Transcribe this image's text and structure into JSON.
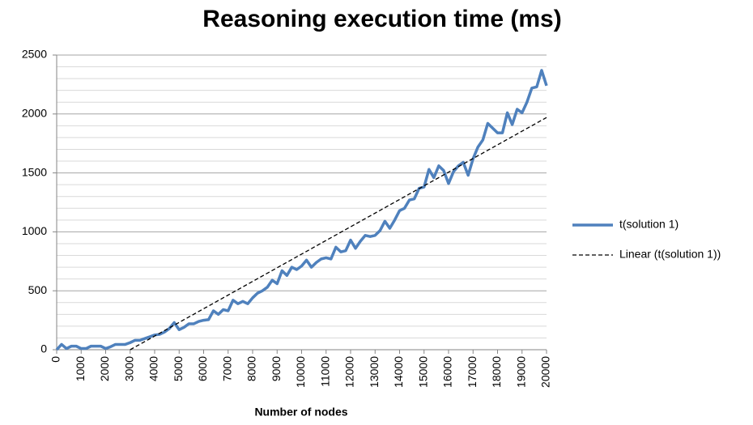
{
  "chart_data": {
    "type": "line",
    "title": "Reasoning execution time (ms)",
    "x_label": "Number of nodes",
    "xlim": [
      0,
      20000
    ],
    "xticks": [
      0,
      1000,
      2000,
      3000,
      4000,
      5000,
      6000,
      7000,
      8000,
      9000,
      10000,
      11000,
      12000,
      13000,
      14000,
      15000,
      16000,
      17000,
      18000,
      19000,
      20000
    ],
    "ylim": [
      0,
      2500
    ],
    "yticks": [
      0,
      500,
      1000,
      1500,
      2000,
      2500
    ],
    "y_minor_ticks": [
      100,
      200,
      300,
      400,
      600,
      700,
      800,
      900,
      1100,
      1200,
      1300,
      1400,
      1600,
      1700,
      1800,
      1900,
      2100,
      2200,
      2300,
      2400
    ],
    "grid": true,
    "legend": "right",
    "series": [
      {
        "name": "t(solution 1)",
        "color": "#4f81bd",
        "dash": false,
        "x": [
          0,
          200,
          400,
          600,
          800,
          1000,
          1200,
          1400,
          1600,
          1800,
          2000,
          2200,
          2400,
          2600,
          2800,
          3000,
          3200,
          3400,
          3600,
          3800,
          4000,
          4200,
          4400,
          4600,
          4800,
          5000,
          5200,
          5400,
          5600,
          5800,
          6000,
          6200,
          6400,
          6600,
          6800,
          7000,
          7200,
          7400,
          7600,
          7800,
          8000,
          8200,
          8400,
          8600,
          8800,
          9000,
          9200,
          9400,
          9600,
          9800,
          10000,
          10200,
          10400,
          10600,
          10800,
          11000,
          11200,
          11400,
          11600,
          11800,
          12000,
          12200,
          12400,
          12600,
          12800,
          13000,
          13200,
          13400,
          13600,
          13800,
          14000,
          14200,
          14400,
          14600,
          14800,
          15000,
          15200,
          15400,
          15600,
          15800,
          16000,
          16200,
          16400,
          16600,
          16800,
          17000,
          17200,
          17400,
          17600,
          17800,
          18000,
          18200,
          18400,
          18600,
          18800,
          19000,
          19200,
          19400,
          19600,
          19800,
          20000
        ],
        "values": [
          0,
          45,
          10,
          30,
          30,
          10,
          10,
          30,
          30,
          30,
          10,
          25,
          45,
          45,
          45,
          60,
          80,
          80,
          95,
          110,
          125,
          130,
          150,
          180,
          230,
          170,
          190,
          220,
          220,
          240,
          250,
          255,
          330,
          300,
          340,
          330,
          420,
          390,
          410,
          390,
          440,
          480,
          500,
          530,
          590,
          560,
          670,
          630,
          700,
          680,
          710,
          760,
          700,
          740,
          770,
          780,
          770,
          870,
          830,
          840,
          930,
          860,
          920,
          970,
          960,
          970,
          1010,
          1090,
          1030,
          1100,
          1180,
          1200,
          1270,
          1280,
          1370,
          1380,
          1530,
          1460,
          1560,
          1520,
          1410,
          1510,
          1560,
          1590,
          1480,
          1620,
          1720,
          1780,
          1920,
          1880,
          1840,
          1840,
          2010,
          1910,
          2040,
          2010,
          2100,
          2220,
          2230,
          2370,
          2240
        ]
      },
      {
        "name": "Linear (t(solution 1))",
        "color": "#000000",
        "dash": true,
        "x": [
          3000,
          20000
        ],
        "values": [
          0,
          1970
        ]
      }
    ]
  }
}
